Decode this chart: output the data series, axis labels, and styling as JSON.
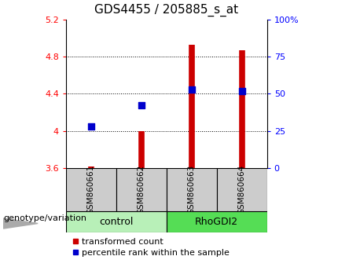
{
  "title": "GDS4455 / 205885_s_at",
  "samples": [
    "GSM860661",
    "GSM860662",
    "GSM860663",
    "GSM860664"
  ],
  "red_values": [
    3.62,
    4.0,
    4.93,
    4.87
  ],
  "blue_values": [
    4.05,
    4.28,
    4.45,
    4.43
  ],
  "ylim_left": [
    3.6,
    5.2
  ],
  "yticks_left": [
    3.6,
    4.0,
    4.4,
    4.8,
    5.2
  ],
  "ytick_labels_left": [
    "3.6",
    "4",
    "4.4",
    "4.8",
    "5.2"
  ],
  "yticks_right": [
    0,
    25,
    50,
    75,
    100
  ],
  "ytick_labels_right": [
    "0",
    "25",
    "50",
    "75",
    "100%"
  ],
  "gridlines_at": [
    4.0,
    4.4,
    4.8
  ],
  "groups": [
    {
      "name": "control",
      "samples": [
        0,
        1
      ],
      "color": "#b8f0b8"
    },
    {
      "name": "RhoGDI2",
      "samples": [
        2,
        3
      ],
      "color": "#55dd55"
    }
  ],
  "bar_color": "#cc0000",
  "dot_color": "#0000cc",
  "dot_size": 40,
  "sample_area_color": "#cccccc",
  "legend_red_label": "transformed count",
  "legend_blue_label": "percentile rank within the sample",
  "genotype_label": "genotype/variation",
  "title_fontsize": 11,
  "tick_fontsize": 8,
  "sample_fontsize": 7.5,
  "group_fontsize": 9,
  "legend_fontsize": 8,
  "genotype_fontsize": 8
}
